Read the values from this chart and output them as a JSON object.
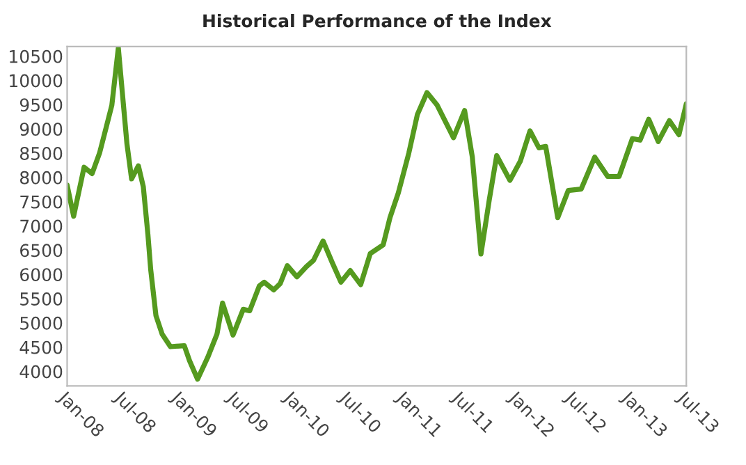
{
  "chart_data": {
    "type": "line",
    "title": "Historical Performance of the Index",
    "x": [
      "2008-01-01",
      "2008-01-22",
      "2008-02-25",
      "2008-03-22",
      "2008-04-15",
      "2008-05-07",
      "2008-05-25",
      "2008-06-15",
      "2008-06-28",
      "2008-07-13",
      "2008-07-28",
      "2008-08-19",
      "2008-09-04",
      "2008-09-19",
      "2008-09-28",
      "2008-10-15",
      "2008-11-04",
      "2008-12-01",
      "2009-01-15",
      "2009-02-01",
      "2009-02-27",
      "2009-04-01",
      "2009-05-01",
      "2009-05-19",
      "2009-06-22",
      "2009-07-25",
      "2009-08-15",
      "2009-09-15",
      "2009-10-01",
      "2009-11-01",
      "2009-11-22",
      "2009-12-15",
      "2010-01-15",
      "2010-02-15",
      "2010-03-10",
      "2010-04-10",
      "2010-05-10",
      "2010-06-07",
      "2010-07-07",
      "2010-08-10",
      "2010-09-10",
      "2010-10-22",
      "2010-11-13",
      "2010-12-10",
      "2011-01-13",
      "2011-02-10",
      "2011-03-13",
      "2011-04-15",
      "2011-06-07",
      "2011-07-13",
      "2011-08-07",
      "2011-09-04",
      "2011-10-01",
      "2011-10-25",
      "2011-12-07",
      "2012-01-10",
      "2012-02-10",
      "2012-03-10",
      "2012-04-01",
      "2012-05-10",
      "2012-06-13",
      "2012-07-25",
      "2012-09-07",
      "2012-10-19",
      "2012-11-25",
      "2013-01-07",
      "2013-02-01",
      "2013-03-01",
      "2013-04-01",
      "2013-05-07",
      "2013-06-07",
      "2013-07-01"
    ],
    "series": [
      {
        "color": "#559a1f",
        "values": [
          7840,
          7200,
          8210,
          8080,
          8500,
          9040,
          9490,
          10670,
          9750,
          8690,
          7970,
          8240,
          7810,
          6820,
          6100,
          5150,
          4770,
          4510,
          4530,
          4220,
          3840,
          4290,
          4770,
          5410,
          4750,
          5280,
          5250,
          5760,
          5840,
          5680,
          5810,
          6180,
          5950,
          6160,
          6290,
          6690,
          6240,
          5840,
          6080,
          5790,
          6430,
          6610,
          7170,
          7680,
          8500,
          9300,
          9750,
          9490,
          8820,
          9380,
          8420,
          6420,
          7540,
          8450,
          7940,
          8340,
          8960,
          8610,
          8640,
          7170,
          7730,
          7760,
          8420,
          8020,
          8020,
          8800,
          8770,
          9200,
          8740,
          9170,
          8880,
          9520
        ]
      }
    ],
    "xlim": [
      "2008-01-01",
      "2013-07-01"
    ],
    "xticks": [
      {
        "value": "2008-01-01",
        "label": "Jan-08"
      },
      {
        "value": "2008-07-01",
        "label": "Jul-08"
      },
      {
        "value": "2009-01-01",
        "label": "Jan-09"
      },
      {
        "value": "2009-07-01",
        "label": "Jul-09"
      },
      {
        "value": "2010-01-01",
        "label": "Jan-10"
      },
      {
        "value": "2010-07-01",
        "label": "Jul-10"
      },
      {
        "value": "2011-01-01",
        "label": "Jan-11"
      },
      {
        "value": "2011-07-01",
        "label": "Jul-11"
      },
      {
        "value": "2012-01-01",
        "label": "Jan-12"
      },
      {
        "value": "2012-07-01",
        "label": "Jul-12"
      },
      {
        "value": "2013-01-01",
        "label": "Jan-13"
      },
      {
        "value": "2013-07-01",
        "label": "Jul-13"
      }
    ],
    "ylim": [
      3700,
      10700
    ],
    "yticks": [
      4000,
      4500,
      5000,
      5500,
      6000,
      6500,
      7000,
      7500,
      8000,
      8500,
      9000,
      9500,
      10000,
      10500
    ],
    "grid": false,
    "legend": false,
    "marker": "none",
    "line_style": "solid"
  }
}
